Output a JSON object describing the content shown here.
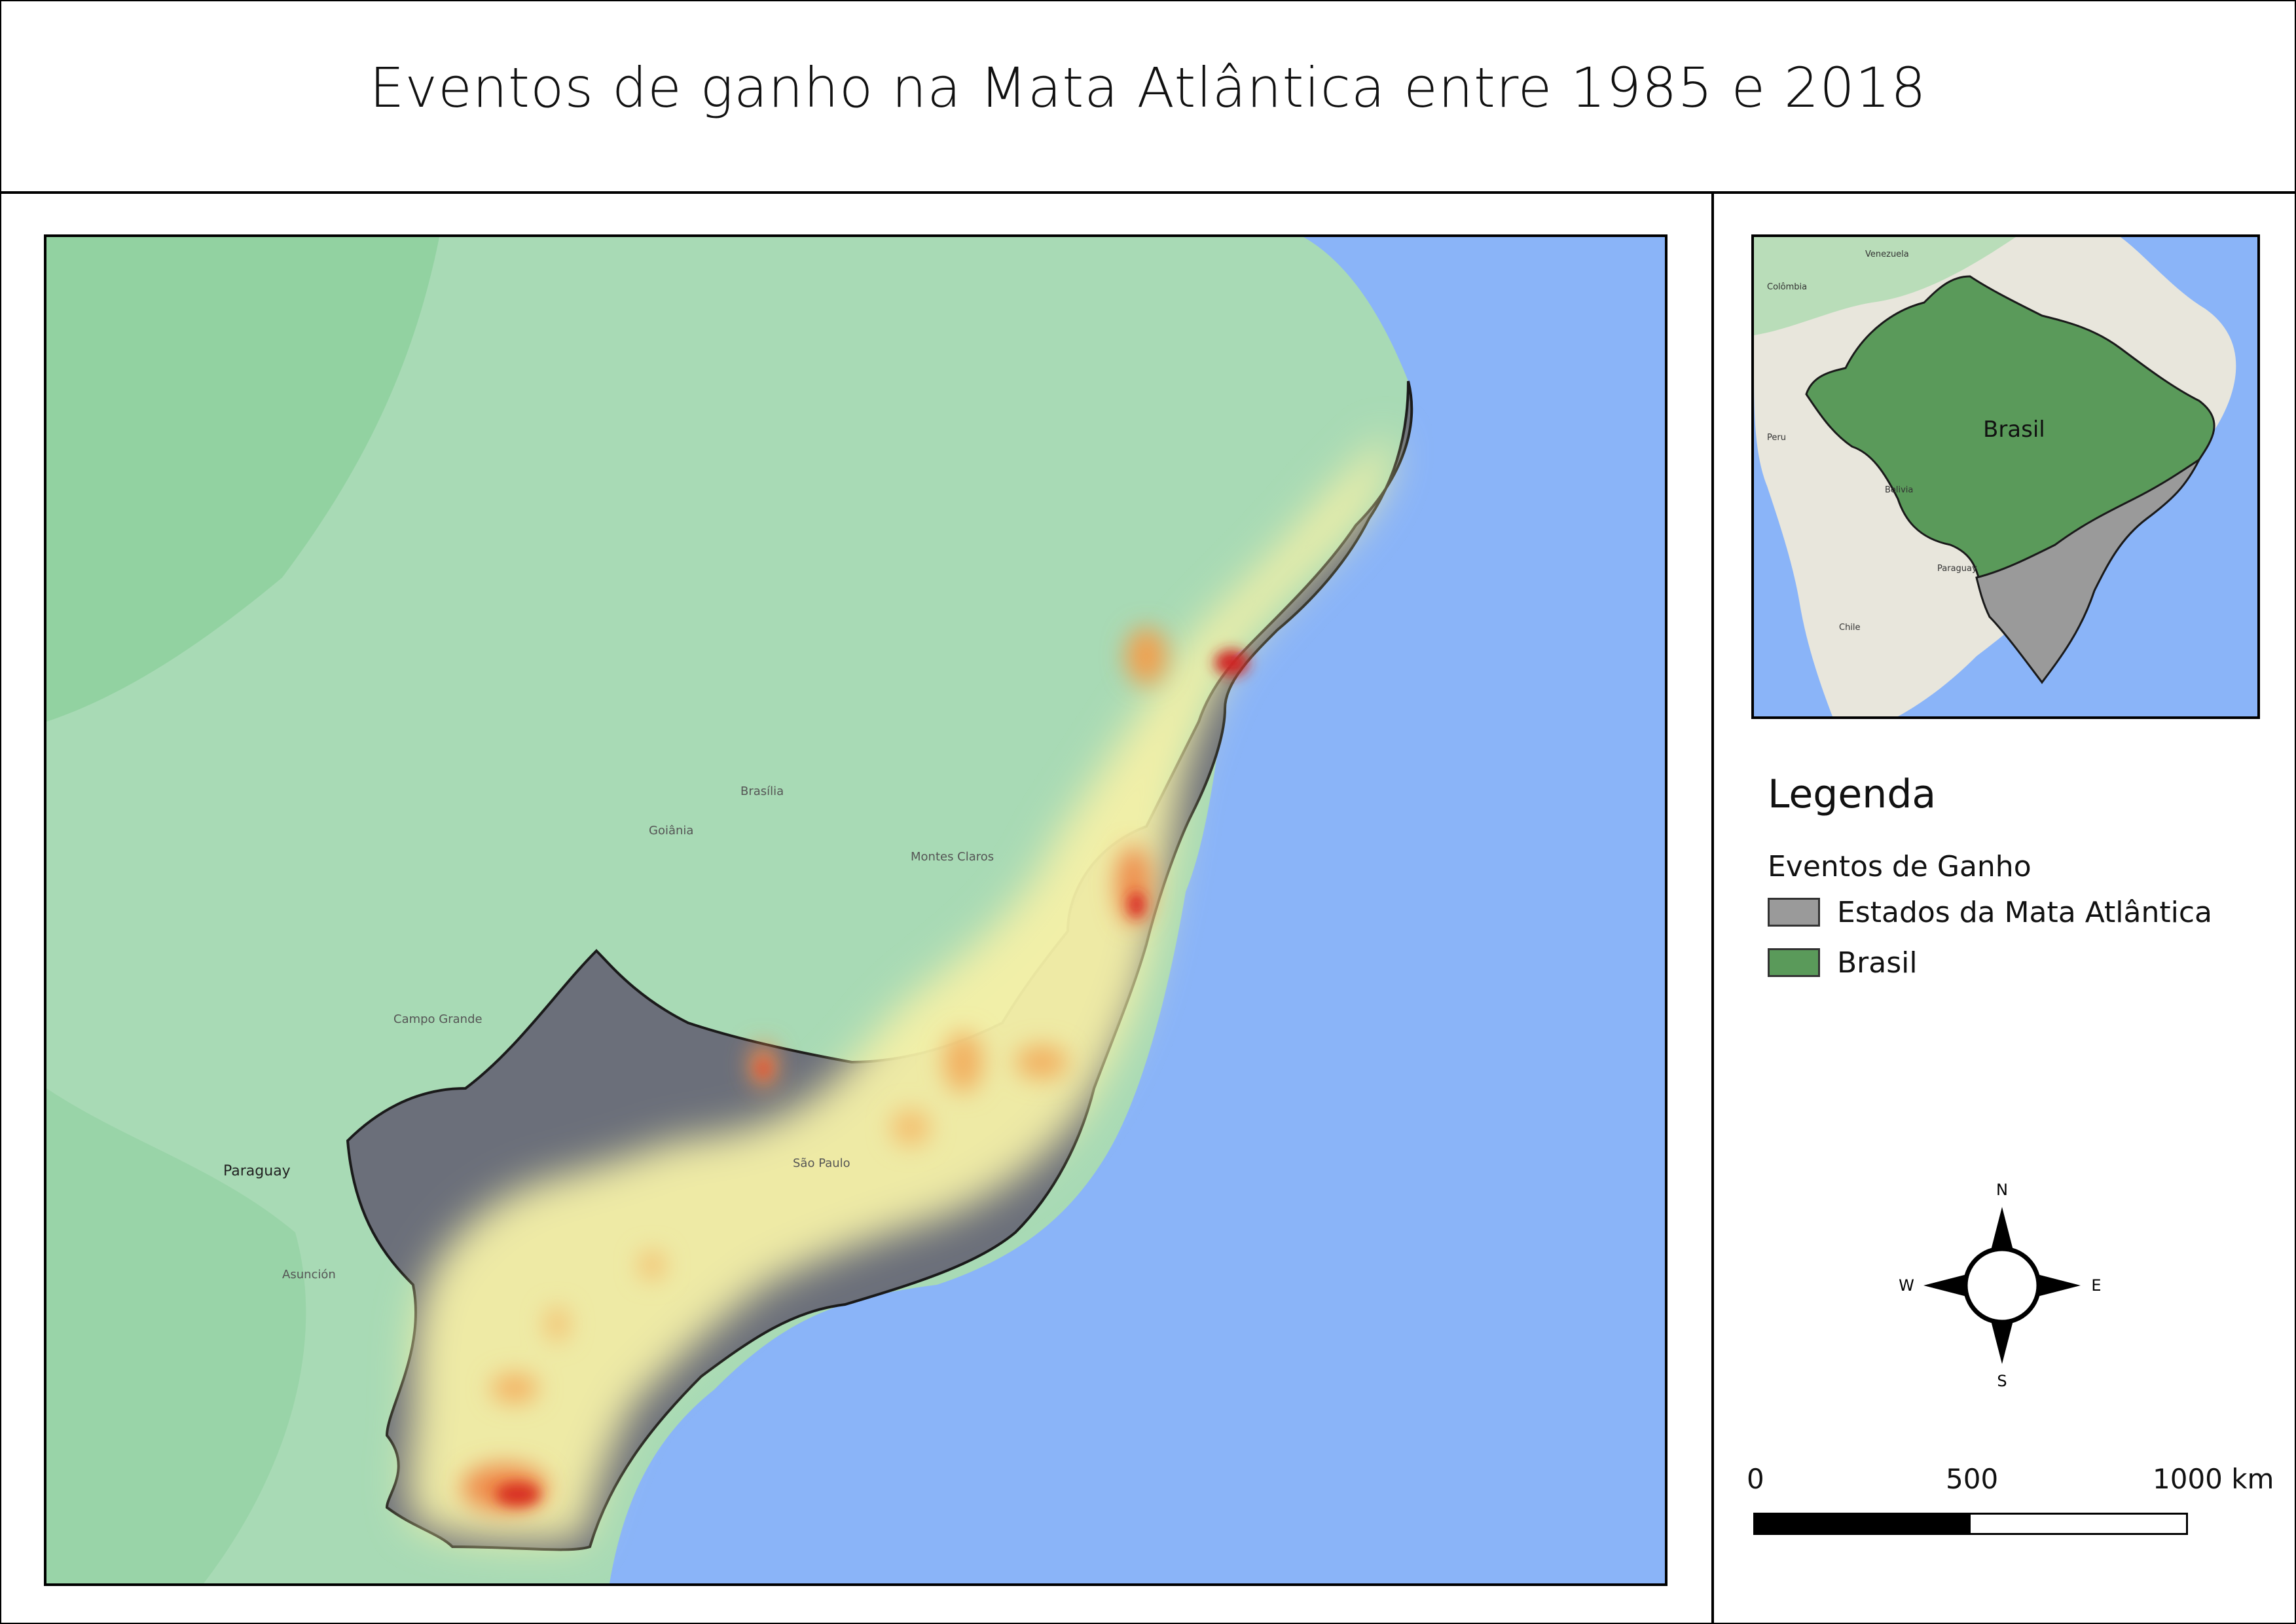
{
  "title": "Eventos de ganho na Mata Atlântica entre 1985 e 2018",
  "main_map": {
    "labels": {
      "country_paraguay": "Paraguay"
    },
    "colors": {
      "ocean": "#8ab4f8",
      "land": "#a8dab5",
      "states_fill": "#6b6f7a",
      "heat_low": "#fff3a0",
      "heat_mid": "#f4b060",
      "heat_high": "#d62020"
    }
  },
  "inset_map": {
    "labels": {
      "brasil": "Brasil",
      "venezuela": "Venezuela",
      "colombia": "Colômbia",
      "peru": "Peru",
      "bolivia": "Bolivia",
      "paraguay": "Paraguay",
      "chile": "Chile"
    },
    "colors": {
      "ocean": "#8ab4f8",
      "land": "#e8e6dc",
      "brasil": "#5a9a5a",
      "states": "#9a9a9a"
    }
  },
  "legend": {
    "title": "Legenda",
    "subtitle": "Eventos de Ganho",
    "items": [
      {
        "label": "Estados da Mata Atlântica",
        "color": "#9a9a9a"
      },
      {
        "label": "Brasil",
        "color": "#5a9a5a"
      }
    ]
  },
  "compass": {
    "n": "N",
    "s": "S",
    "e": "E",
    "w": "W"
  },
  "scale": {
    "labels": [
      "0",
      "500",
      "1000 km"
    ]
  }
}
